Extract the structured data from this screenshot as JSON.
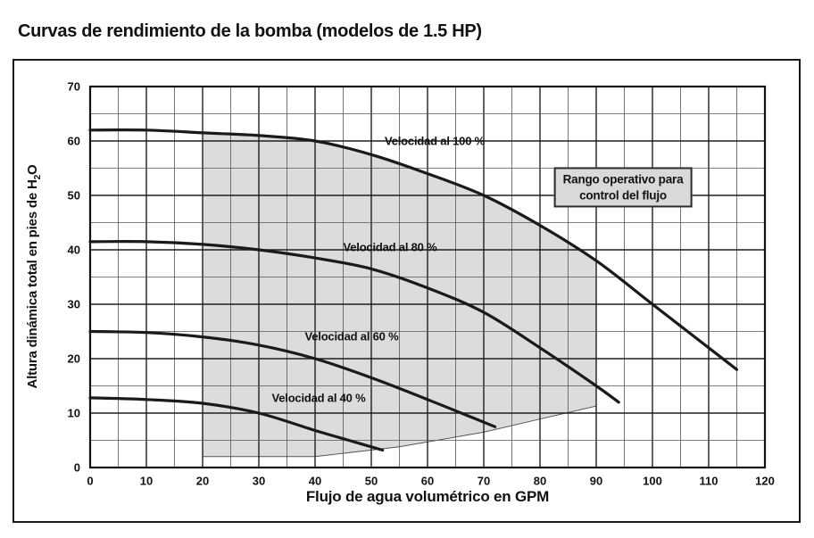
{
  "title": "Curvas de rendimiento de la bomba (modelos de 1.5 HP)",
  "chart_data": {
    "type": "line",
    "xlabel": "Flujo de agua volumétrico en GPM",
    "ylabel_main": "Altura dinámica total en pies de H",
    "ylabel_sub": "2",
    "ylabel_end": "O",
    "xlim": [
      0,
      120
    ],
    "ylim": [
      0,
      70
    ],
    "x_ticks": [
      0,
      10,
      20,
      30,
      40,
      50,
      60,
      70,
      80,
      90,
      100,
      110,
      120
    ],
    "y_ticks": [
      0,
      10,
      20,
      30,
      40,
      50,
      60,
      70
    ],
    "minor_step": 5,
    "grid": true,
    "legend_position": "inline-labels",
    "series": [
      {
        "name": "Velocidad al 100 %",
        "points": [
          [
            0,
            62
          ],
          [
            10,
            62
          ],
          [
            20,
            61.5
          ],
          [
            30,
            61
          ],
          [
            40,
            60
          ],
          [
            50,
            57.5
          ],
          [
            60,
            54
          ],
          [
            70,
            50
          ],
          [
            80,
            44.5
          ],
          [
            90,
            38
          ],
          [
            100,
            30
          ],
          [
            110,
            22
          ],
          [
            115,
            18
          ]
        ]
      },
      {
        "name": "Velocidad al 80 %",
        "points": [
          [
            0,
            41.5
          ],
          [
            10,
            41.5
          ],
          [
            20,
            41
          ],
          [
            30,
            40
          ],
          [
            40,
            38.5
          ],
          [
            50,
            36.5
          ],
          [
            60,
            33
          ],
          [
            70,
            28.5
          ],
          [
            80,
            22
          ],
          [
            90,
            15
          ],
          [
            94,
            12
          ]
        ]
      },
      {
        "name": "Velocidad al 60 %",
        "points": [
          [
            0,
            25
          ],
          [
            10,
            24.8
          ],
          [
            20,
            24
          ],
          [
            30,
            22.5
          ],
          [
            40,
            20
          ],
          [
            50,
            16.5
          ],
          [
            60,
            12.5
          ],
          [
            66,
            10
          ],
          [
            72,
            7.5
          ]
        ]
      },
      {
        "name": "Velocidad al 40 %",
        "points": [
          [
            0,
            12.8
          ],
          [
            10,
            12.5
          ],
          [
            20,
            11.8
          ],
          [
            30,
            10
          ],
          [
            40,
            6.8
          ],
          [
            46,
            5
          ],
          [
            52,
            3.2
          ]
        ]
      }
    ],
    "operating_region": {
      "label_line1": "Rango operativo para",
      "label_line2": "control del flujo",
      "polygon": [
        [
          20,
          2
        ],
        [
          20,
          61.5
        ],
        [
          30,
          61
        ],
        [
          40,
          60
        ],
        [
          50,
          57.5
        ],
        [
          60,
          54
        ],
        [
          70,
          50
        ],
        [
          80,
          44.5
        ],
        [
          90,
          38
        ],
        [
          90,
          11.3
        ],
        [
          80,
          8.9
        ],
        [
          70,
          6.5
        ],
        [
          55,
          3.8
        ],
        [
          40,
          2
        ],
        [
          20,
          2
        ]
      ],
      "smooth_top_from_index": 1,
      "smooth_top_to_index": 8
    },
    "colors": {
      "curve": "#1a1a1a",
      "grid_major": "#1f1f1f",
      "grid_minor": "#555555",
      "plot_border": "#111111",
      "region_fill": "#dcdcdc",
      "box_fill": "#d9d9d9"
    }
  }
}
